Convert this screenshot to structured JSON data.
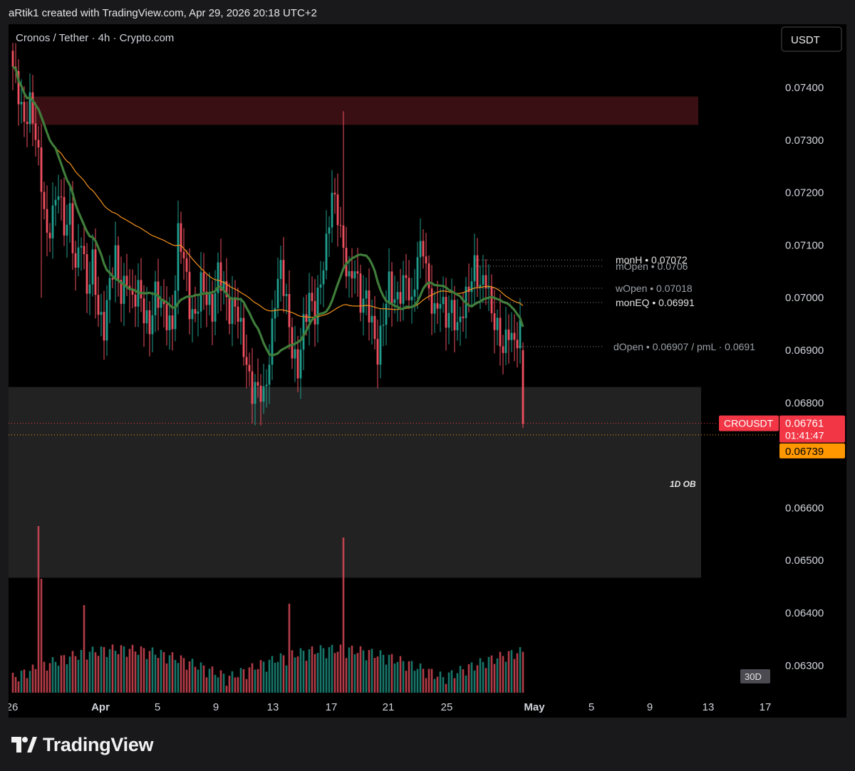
{
  "header": {
    "attribution": "aRtik1 created with TradingView.com, Apr 29, 2026 20:18 UTC+2"
  },
  "chart": {
    "legend_title": "Cronos / Tether · 4h · Crypto.com",
    "currency_button": "USDT",
    "interval_badge": "30D",
    "symbol": "CROUSDT",
    "last_price": "0.06761",
    "countdown": "01:41:47",
    "ma_price": "0.06739",
    "ob_label": "1D OB",
    "colors": {
      "up": "#1f9e8e",
      "down": "#ef4f5f",
      "ma_fast": "#3f7d3a",
      "ma_slow": "#f5921b",
      "supply_zone": "#3a0f13",
      "ob_zone": "#222222",
      "price_tag": "#f23645",
      "ma_tag": "#ff9800"
    }
  },
  "chart_data": {
    "type": "candlestick",
    "timeframe": "4h",
    "price_axis": {
      "ticks": [
        "0.07400",
        "0.07300",
        "0.07200",
        "0.07100",
        "0.07000",
        "0.06900",
        "0.06800",
        "0.06600",
        "0.06500",
        "0.06400",
        "0.06300"
      ],
      "range": [
        0.0625,
        0.0744
      ]
    },
    "time_axis": {
      "ticks": [
        "26",
        "Apr",
        "5",
        "9",
        "13",
        "17",
        "21",
        "25",
        "May",
        "5",
        "9",
        "13",
        "17"
      ]
    },
    "levels": [
      {
        "label": "monH",
        "value": "0.07072",
        "price": 0.07072
      },
      {
        "label": "mOpen",
        "value": "0.0706",
        "price": 0.0706
      },
      {
        "label": "wOpen",
        "value": "0.07018",
        "price": 0.07018
      },
      {
        "label": "monEQ",
        "value": "0.06991",
        "price": 0.06991
      },
      {
        "label": "dOpen",
        "value": "0.06907 / pmL · 0.0691",
        "price": 0.06907
      }
    ],
    "zones": [
      {
        "name": "supply",
        "top": 0.07383,
        "bottom": 0.07329
      },
      {
        "name": "1D OB",
        "top": 0.0683,
        "bottom": 0.06467
      }
    ],
    "anchors": [
      [
        0,
        0.0744
      ],
      [
        2,
        0.0739
      ],
      [
        4,
        0.0733
      ],
      [
        6,
        0.0737
      ],
      [
        8,
        0.0731
      ],
      [
        10,
        0.0722
      ],
      [
        12,
        0.0711
      ],
      [
        14,
        0.0716
      ],
      [
        16,
        0.0721
      ],
      [
        18,
        0.0713
      ],
      [
        20,
        0.0716
      ],
      [
        22,
        0.0705
      ],
      [
        24,
        0.0712
      ],
      [
        26,
        0.0701
      ],
      [
        28,
        0.0707
      ],
      [
        30,
        0.0697
      ],
      [
        32,
        0.0694
      ],
      [
        34,
        0.0703
      ],
      [
        36,
        0.0708
      ],
      [
        38,
        0.07
      ],
      [
        40,
        0.0704
      ],
      [
        42,
        0.0699
      ],
      [
        44,
        0.0702
      ],
      [
        46,
        0.0697
      ],
      [
        48,
        0.0694
      ],
      [
        50,
        0.0701
      ],
      [
        52,
        0.0699
      ],
      [
        54,
        0.0696
      ],
      [
        56,
        0.0694
      ],
      [
        58,
        0.0712
      ],
      [
        60,
        0.0708
      ],
      [
        62,
        0.0698
      ],
      [
        64,
        0.0696
      ],
      [
        66,
        0.0703
      ],
      [
        68,
        0.07
      ],
      [
        70,
        0.0697
      ],
      [
        72,
        0.0705
      ],
      [
        74,
        0.0702
      ],
      [
        76,
        0.0697
      ],
      [
        78,
        0.0699
      ],
      [
        80,
        0.0694
      ],
      [
        82,
        0.0687
      ],
      [
        84,
        0.0682
      ],
      [
        86,
        0.0683
      ],
      [
        88,
        0.0681
      ],
      [
        90,
        0.0688
      ],
      [
        92,
        0.07
      ],
      [
        94,
        0.0706
      ],
      [
        96,
        0.0699
      ],
      [
        98,
        0.069
      ],
      [
        100,
        0.0686
      ],
      [
        102,
        0.0695
      ],
      [
        104,
        0.07
      ],
      [
        106,
        0.0697
      ],
      [
        108,
        0.0703
      ],
      [
        110,
        0.071
      ],
      [
        112,
        0.072
      ],
      [
        114,
        0.0716
      ],
      [
        116,
        0.0709
      ],
      [
        118,
        0.0703
      ],
      [
        120,
        0.0706
      ],
      [
        122,
        0.0699
      ],
      [
        124,
        0.07
      ],
      [
        126,
        0.0695
      ],
      [
        128,
        0.0689
      ],
      [
        130,
        0.0696
      ],
      [
        132,
        0.0703
      ],
      [
        134,
        0.0699
      ],
      [
        136,
        0.0701
      ],
      [
        138,
        0.0704
      ],
      [
        140,
        0.0698
      ],
      [
        142,
        0.0708
      ],
      [
        144,
        0.071
      ],
      [
        146,
        0.0701
      ],
      [
        148,
        0.0697
      ],
      [
        150,
        0.07
      ],
      [
        152,
        0.0696
      ],
      [
        154,
        0.0698
      ],
      [
        156,
        0.0694
      ],
      [
        158,
        0.0698
      ],
      [
        160,
        0.0702
      ],
      [
        162,
        0.0706
      ],
      [
        164,
        0.0702
      ],
      [
        166,
        0.0704
      ],
      [
        168,
        0.0697
      ],
      [
        170,
        0.0694
      ],
      [
        172,
        0.069
      ],
      [
        174,
        0.0694
      ],
      [
        176,
        0.0691
      ],
      [
        178,
        0.0694
      ],
      [
        179,
        0.0676
      ]
    ]
  }
}
